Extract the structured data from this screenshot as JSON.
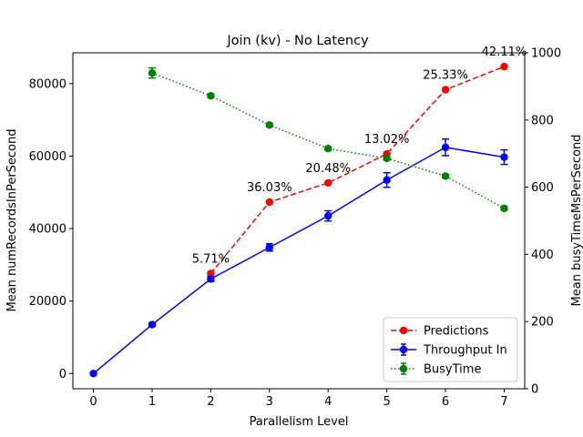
{
  "chart_data": {
    "type": "line",
    "title": "Join (kv) - No Latency",
    "xlabel": "Parallelism Level",
    "ylabel": "Mean numRecordsInPerSecond",
    "y2label": "Mean busyTimeMsPerSecond",
    "xlim": [
      -0.35,
      7.35
    ],
    "ylim": [
      -4200,
      88500
    ],
    "y2lim": [
      0,
      1000
    ],
    "xticks": [
      0,
      1,
      2,
      3,
      4,
      5,
      6,
      7
    ],
    "yticks": [
      0,
      20000,
      40000,
      60000,
      80000
    ],
    "y2ticks": [
      0,
      200,
      400,
      600,
      800,
      1000
    ],
    "grid": false,
    "legend": "lower-right",
    "series": [
      {
        "name": "Predictions",
        "axis": "left",
        "color": "#ff0000",
        "linestyle": "dashed",
        "marker": "circle",
        "x": [
          2,
          3,
          4,
          5,
          6,
          7
        ],
        "y": [
          27600,
          47300,
          52600,
          60600,
          78300,
          84700
        ],
        "labels": [
          "5.71%",
          "36.03%",
          "20.48%",
          "13.02%",
          "25.33%",
          "42.11%"
        ]
      },
      {
        "name": "Throughput In",
        "axis": "left",
        "color": "#0000ff",
        "linestyle": "solid",
        "marker": "circle",
        "x": [
          0,
          1,
          2,
          3,
          4,
          5,
          6,
          7
        ],
        "y": [
          0,
          13500,
          26100,
          34800,
          43500,
          53400,
          62400,
          59700
        ],
        "error": [
          0,
          500,
          700,
          1000,
          1400,
          2000,
          2300,
          2000
        ]
      },
      {
        "name": "BusyTime",
        "axis": "right",
        "color": "#008000",
        "linestyle": "dotted",
        "marker": "circle",
        "x": [
          1,
          2,
          3,
          4,
          5,
          6,
          7
        ],
        "y": [
          940,
          872,
          785,
          715,
          686,
          633,
          537
        ],
        "error": [
          15,
          5,
          5,
          5,
          5,
          5,
          5
        ]
      }
    ]
  }
}
